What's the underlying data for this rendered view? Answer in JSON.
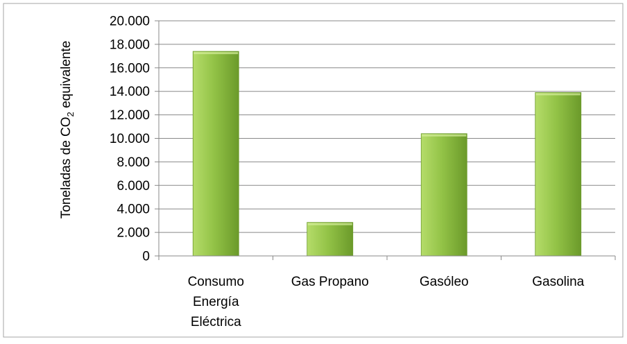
{
  "chart_data": {
    "type": "bar",
    "categories": [
      [
        "Consumo",
        "Energía",
        "Eléctrica"
      ],
      [
        "Gas Propano"
      ],
      [
        "Gasóleo"
      ],
      [
        "Gasolina"
      ]
    ],
    "values": [
      17400,
      2850,
      10400,
      13900
    ],
    "ylabel_prefix": "Toneladas de CO",
    "ylabel_subscript": "2",
    "ylabel_suffix": " equivalente",
    "ylim": [
      0,
      20000
    ],
    "yticks": [
      "0",
      "2.000",
      "4.000",
      "6.000",
      "8.000",
      "10.000",
      "12.000",
      "14.000",
      "16.000",
      "18.000",
      "20.000"
    ],
    "grid": true,
    "legend": "none",
    "colors": {
      "bar_light": "#b5dc6a",
      "bar_mid": "#93c347",
      "bar_dark": "#6b9a2a",
      "gridline": "#888888",
      "axis": "#888888",
      "frame": "#a6a6a6"
    }
  }
}
